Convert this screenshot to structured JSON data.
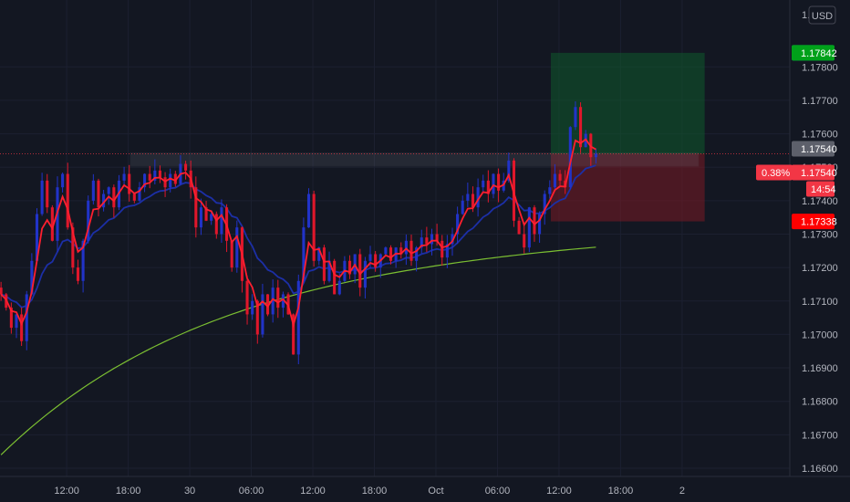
{
  "currency_label": "USD",
  "chart_data": {
    "type": "candlestick",
    "y_ticks": [
      "1.17800",
      "1.17700",
      "1.17600",
      "1.17500",
      "1.17400",
      "1.17300",
      "1.17200",
      "1.17100",
      "1.17000",
      "1.16900",
      "1.16800",
      "1.16700",
      "1.16600"
    ],
    "y_tick_values": [
      1.178,
      1.177,
      1.176,
      1.175,
      1.174,
      1.173,
      1.172,
      1.171,
      1.17,
      1.169,
      1.168,
      1.167,
      1.166
    ],
    "top_tick_partial": "1.",
    "ylim": [
      1.16535,
      1.18
    ],
    "x_ticks": [
      "12:00",
      "18:00",
      "30",
      "06:00",
      "12:00",
      "18:00",
      "Oct",
      "06:00",
      "12:00",
      "18:00",
      "2"
    ],
    "x_tick_hours": [
      12,
      18,
      24,
      30,
      36,
      42,
      48,
      54,
      60,
      66,
      72
    ],
    "xlim_hours": [
      5.5,
      82.5
    ],
    "current_price": 1.1754,
    "current_price_label": "1.17540",
    "change_label": "0.38%",
    "countdown_label": "14:54",
    "take_profit": 1.17842,
    "take_profit_label": "1.17842",
    "stop_loss": 1.17338,
    "stop_loss_label": "1.17338",
    "entry_price": 1.1754,
    "entry_label": "1.17540",
    "position_box_hours": [
      59.2,
      74.2
    ],
    "resistance_zone": {
      "from_hour": 18.2,
      "to_hour": 73.6,
      "price_low": 1.17503,
      "price_high": 1.17543
    },
    "candle_hours": [
      5.6,
      63.6
    ],
    "candles_close": [
      1.1712,
      1.1708,
      1.1702,
      1.1706,
      1.1698,
      1.1712,
      1.1722,
      1.1736,
      1.1746,
      1.1738,
      1.1728,
      1.1744,
      1.1748,
      1.1732,
      1.172,
      1.1716,
      1.1728,
      1.174,
      1.1746,
      1.1738,
      1.1742,
      1.1744,
      1.1738,
      1.1746,
      1.1748,
      1.1742,
      1.174,
      1.1744,
      1.1748,
      1.1746,
      1.1749,
      1.1747,
      1.1744,
      1.1748,
      1.1745,
      1.1751,
      1.1749,
      1.1744,
      1.1732,
      1.1738,
      1.1734,
      1.1736,
      1.173,
      1.1738,
      1.1728,
      1.172,
      1.1732,
      1.1716,
      1.1706,
      1.171,
      1.17,
      1.1712,
      1.1706,
      1.1714,
      1.1708,
      1.1712,
      1.1706,
      1.1694,
      1.1716,
      1.1732,
      1.1742,
      1.1722,
      1.1726,
      1.1716,
      1.1722,
      1.1712,
      1.1716,
      1.1722,
      1.1718,
      1.1724,
      1.1714,
      1.1722,
      1.1724,
      1.172,
      1.1724,
      1.1726,
      1.1722,
      1.1726,
      1.1724,
      1.1728,
      1.1722,
      1.1726,
      1.1729,
      1.1727,
      1.173,
      1.1728,
      1.1723,
      1.1727,
      1.173,
      1.1736,
      1.174,
      1.1742,
      1.1738,
      1.1744,
      1.1746,
      1.1742,
      1.1748,
      1.1743,
      1.1746,
      1.1752,
      1.1734,
      1.173,
      1.1726,
      1.1738,
      1.173,
      1.1736,
      1.1742,
      1.1744,
      1.1748,
      1.1746,
      1.1744,
      1.1762,
      1.1768,
      1.1756,
      1.176,
      1.1753,
      1.1754
    ]
  }
}
